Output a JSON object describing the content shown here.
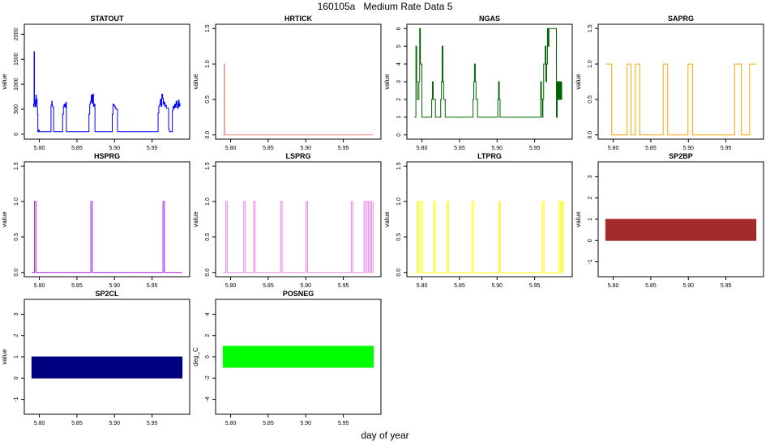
{
  "figure": {
    "title": "160105a   Medium Rate Data 5",
    "xlabel": "day of year"
  },
  "chart_data": [
    {
      "title": "STATOUT",
      "type": "line",
      "ylabel": "value",
      "xlim": [
        5.78,
        6.0
      ],
      "ylim": [
        -100,
        2200
      ],
      "xticks": [
        "5.80",
        "5.85",
        "5.90",
        "5.95"
      ],
      "yticks": [
        "0",
        "500",
        "1000",
        "1500",
        "2000"
      ],
      "color": "#0000ff",
      "step": true,
      "x": [
        5.792,
        5.7925,
        5.793,
        5.7935,
        5.794,
        5.7945,
        5.795,
        5.7955,
        5.796,
        5.7965,
        5.797,
        5.7975,
        5.798,
        5.799,
        5.8,
        5.815,
        5.8155,
        5.8165,
        5.817,
        5.8175,
        5.818,
        5.819,
        5.821,
        5.83,
        5.831,
        5.832,
        5.833,
        5.834,
        5.835,
        5.8355,
        5.836,
        5.865,
        5.866,
        5.867,
        5.868,
        5.869,
        5.87,
        5.871,
        5.872,
        5.873,
        5.874,
        5.896,
        5.897,
        5.898,
        5.899,
        5.9,
        5.901,
        5.902,
        5.904,
        5.957,
        5.958,
        5.959,
        5.96,
        5.961,
        5.962,
        5.963,
        5.964,
        5.965,
        5.966,
        5.967,
        5.968,
        5.969,
        5.972,
        5.973,
        5.975,
        5.977,
        5.978,
        5.979,
        5.98,
        5.981,
        5.982,
        5.983,
        5.984,
        5.985,
        5.986,
        5.987
      ],
      "y": [
        550,
        600,
        1650,
        700,
        550,
        650,
        560,
        780,
        620,
        700,
        550,
        400,
        50,
        80,
        50,
        50,
        580,
        660,
        590,
        560,
        540,
        50,
        50,
        50,
        400,
        560,
        600,
        540,
        600,
        640,
        50,
        50,
        400,
        600,
        660,
        780,
        620,
        800,
        560,
        600,
        50,
        50,
        400,
        600,
        580,
        560,
        520,
        500,
        50,
        50,
        420,
        560,
        600,
        700,
        560,
        800,
        720,
        600,
        640,
        560,
        580,
        520,
        100,
        50,
        50,
        480,
        560,
        520,
        600,
        540,
        660,
        600,
        520,
        680,
        560,
        620
      ]
    },
    {
      "title": "HRTICK",
      "type": "line",
      "ylabel": "value",
      "xlim": [
        5.78,
        6.0
      ],
      "ylim": [
        -0.06,
        1.56
      ],
      "xticks": [
        "5.80",
        "5.85",
        "5.90",
        "5.95"
      ],
      "yticks": [
        "0.0",
        "0.5",
        "1.0",
        "1.5"
      ],
      "color": "#f08080",
      "step": true,
      "x": [
        5.79,
        5.7915,
        5.792,
        5.989
      ],
      "y": [
        0,
        1,
        0,
        0
      ]
    },
    {
      "title": "NGAS",
      "type": "line",
      "ylabel": "value",
      "xlim": [
        5.78,
        6.0
      ],
      "ylim": [
        -0.24,
        6.24
      ],
      "xticks": [
        "5.80",
        "5.85",
        "5.90",
        "5.95"
      ],
      "yticks": [
        "0",
        "1",
        "2",
        "3",
        "4",
        "5",
        "6"
      ],
      "color": "#006400",
      "step": true,
      "x": [
        5.79,
        5.792,
        5.793,
        5.794,
        5.796,
        5.797,
        5.798,
        5.8,
        5.812,
        5.813,
        5.814,
        5.815,
        5.816,
        5.818,
        5.822,
        5.825,
        5.826,
        5.827,
        5.828,
        5.829,
        5.831,
        5.833,
        5.834,
        5.837,
        5.867,
        5.868,
        5.869,
        5.87,
        5.871,
        5.872,
        5.874,
        5.876,
        5.9,
        5.901,
        5.902,
        5.903,
        5.904,
        5.957,
        5.958,
        5.959,
        5.96,
        5.961,
        5.962,
        5.964,
        5.965,
        5.966,
        5.967,
        5.968,
        5.969,
        5.97,
        5.979,
        5.98,
        5.981,
        5.982,
        5.983,
        5.984,
        5.985,
        5.986
      ],
      "y": [
        1,
        5,
        3,
        2,
        3,
        6,
        4,
        1,
        1,
        2,
        3,
        2,
        2,
        1,
        1,
        2,
        3,
        5,
        3,
        2,
        1,
        1,
        1,
        1,
        1,
        2,
        3,
        4,
        3,
        2,
        1,
        1,
        1,
        2,
        3,
        2,
        1,
        1,
        3,
        2,
        1,
        2,
        4,
        5,
        3,
        4,
        6,
        5,
        6,
        6,
        1,
        3,
        2,
        3,
        2,
        3,
        2,
        3
      ]
    },
    {
      "title": "SAPRG",
      "type": "line",
      "ylabel": "value",
      "xlim": [
        5.78,
        6.0
      ],
      "ylim": [
        -0.06,
        1.56
      ],
      "xticks": [
        "5.80",
        "5.85",
        "5.90",
        "5.95"
      ],
      "yticks": [
        "0.0",
        "0.5",
        "1.0",
        "1.5"
      ],
      "color": "#ffa500",
      "step": true,
      "x": [
        5.79,
        5.798,
        5.8185,
        5.8235,
        5.8295,
        5.8355,
        5.8665,
        5.8725,
        5.8995,
        5.9055,
        5.9615,
        5.9705,
        5.9815,
        5.99
      ],
      "y": [
        1,
        0,
        1,
        0,
        1,
        0,
        1,
        0,
        1,
        0,
        1,
        0,
        1,
        1
      ]
    },
    {
      "title": "HSPRG",
      "type": "line",
      "ylabel": "value",
      "xlim": [
        5.78,
        6.0
      ],
      "ylim": [
        -0.06,
        1.56
      ],
      "xticks": [
        "5.80",
        "5.85",
        "5.90",
        "5.95"
      ],
      "yticks": [
        "0.0",
        "0.5",
        "1.0",
        "1.5"
      ],
      "color": "#a020f0",
      "step": true,
      "x": [
        5.79,
        5.7935,
        5.7955,
        5.8685,
        5.8705,
        5.9645,
        5.9665,
        5.99
      ],
      "y": [
        0,
        1,
        0,
        1,
        0,
        1,
        0,
        0
      ]
    },
    {
      "title": "LSPRG",
      "type": "line",
      "ylabel": "value",
      "xlim": [
        5.78,
        6.0
      ],
      "ylim": [
        -0.06,
        1.56
      ],
      "xticks": [
        "5.80",
        "5.85",
        "5.90",
        "5.95"
      ],
      "yticks": [
        "0.0",
        "0.5",
        "1.0",
        "1.5"
      ],
      "color": "#ee82ee",
      "step": true,
      "x": [
        5.79,
        5.7935,
        5.7955,
        5.8175,
        5.8195,
        5.8305,
        5.8325,
        5.8665,
        5.8685,
        5.9005,
        5.9025,
        5.9605,
        5.9625,
        5.9775,
        5.9795,
        5.9815,
        5.9835,
        5.9855,
        5.9875,
        5.9895
      ],
      "y": [
        0,
        1,
        0,
        1,
        0,
        1,
        0,
        1,
        0,
        1,
        0,
        1,
        0,
        1,
        0,
        1,
        0,
        1,
        0,
        1
      ]
    },
    {
      "title": "LTPRG",
      "type": "line",
      "ylabel": "value",
      "xlim": [
        5.78,
        6.0
      ],
      "ylim": [
        -0.06,
        1.56
      ],
      "xticks": [
        "5.80",
        "5.85",
        "5.90",
        "5.95"
      ],
      "yticks": [
        "0.0",
        "0.5",
        "1.0",
        "1.5"
      ],
      "color": "#ffff00",
      "step": true,
      "x": [
        5.79,
        5.7935,
        5.7955,
        5.7985,
        5.8005,
        5.8155,
        5.8175,
        5.8335,
        5.8355,
        5.8665,
        5.8685,
        5.9025,
        5.9045,
        5.9605,
        5.9625,
        5.9825,
        5.9845,
        5.9865,
        5.9885
      ],
      "y": [
        0,
        1,
        0,
        1,
        0,
        1,
        0,
        1,
        0,
        1,
        0,
        1,
        0,
        1,
        0,
        1,
        0,
        1,
        0
      ]
    },
    {
      "title": "SP2BP",
      "type": "area",
      "ylabel": "value",
      "xlim": [
        5.78,
        6.0
      ],
      "ylim": [
        -1.7,
        3.7
      ],
      "xticks": [
        "5.80",
        "5.85",
        "5.90",
        "5.95"
      ],
      "yticks": [
        "-1",
        "0",
        "1",
        "2",
        "3"
      ],
      "color": "#a52a2a",
      "x": [
        5.79,
        5.99
      ],
      "band": [
        0,
        1
      ]
    },
    {
      "title": "SP2CL",
      "type": "area",
      "ylabel": "value",
      "xlim": [
        5.78,
        6.0
      ],
      "ylim": [
        -1.7,
        3.7
      ],
      "xticks": [
        "5.80",
        "5.85",
        "5.90",
        "5.95"
      ],
      "yticks": [
        "-1",
        "0",
        "1",
        "2",
        "3"
      ],
      "color": "#000080",
      "x": [
        5.79,
        5.99
      ],
      "band": [
        0,
        1
      ]
    },
    {
      "title": "POSNEG",
      "type": "area",
      "ylabel": "deg_C",
      "xlim": [
        5.78,
        6.0
      ],
      "ylim": [
        -5.4,
        5.4
      ],
      "xticks": [
        "5.80",
        "5.85",
        "5.90",
        "5.95"
      ],
      "yticks": [
        "-4",
        "-2",
        "0",
        "2",
        "4"
      ],
      "color": "#00ff00",
      "x": [
        5.79,
        5.99
      ],
      "band": [
        -1,
        1
      ]
    }
  ]
}
